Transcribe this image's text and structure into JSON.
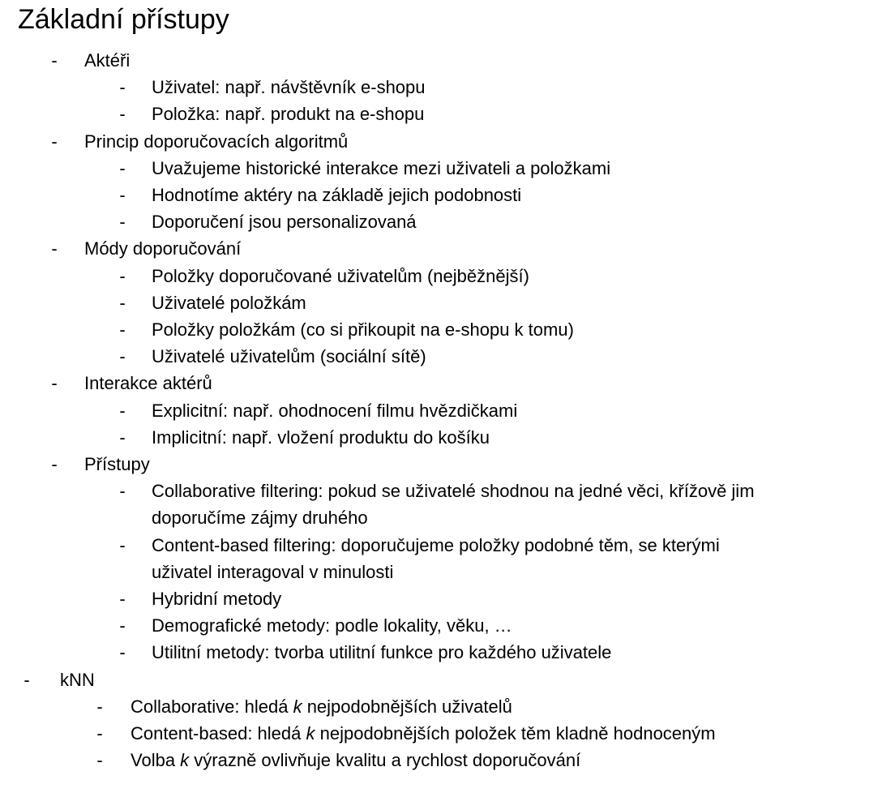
{
  "title": "Základní přístupy",
  "bullet": "-",
  "sections": [
    {
      "label": "Aktéři",
      "items": [
        [
          "Uživatel: např. návštěvník e-shopu"
        ],
        [
          "Položka: např. produkt na e-shopu"
        ]
      ]
    },
    {
      "label": "Princip doporučovacích algoritmů",
      "items": [
        [
          "Uvažujeme historické interakce mezi uživateli a položkami"
        ],
        [
          "Hodnotíme aktéry na základě jejich podobnosti"
        ],
        [
          "Doporučení jsou personalizovaná"
        ]
      ]
    },
    {
      "label": "Módy doporučování",
      "items": [
        [
          "Položky doporučované uživatelům (nejběžnější)"
        ],
        [
          "Uživatelé položkám"
        ],
        [
          "Položky položkám (co si přikoupit na e-shopu k tomu)"
        ],
        [
          "Uživatelé uživatelům (sociální sítě)"
        ]
      ]
    },
    {
      "label": "Interakce aktérů",
      "items": [
        [
          "Explicitní: např. ohodnocení filmu hvězdičkami"
        ],
        [
          "Implicitní: např. vložení produktu do košíku"
        ]
      ]
    },
    {
      "label": "Přístupy",
      "items": [
        [
          "Collaborative filtering: pokud se uživatelé shodnou na jedné věci, křížově jim",
          "doporučíme zájmy druhého"
        ],
        [
          "Content-based filtering: doporučujeme položky podobné těm, se kterými",
          "uživatel interagoval v minulosti"
        ],
        [
          "Hybridní metody"
        ],
        [
          "Demografické metody: podle lokality, věku, …"
        ],
        [
          "Utilitní metody: tvorba utilitní funkce pro každého uživatele"
        ]
      ]
    }
  ],
  "knn": {
    "label": "kNN",
    "items": [
      [
        "Collaborative: hledá ",
        "k",
        " nejpodobnějších uživatelů"
      ],
      [
        "Content-based: hledá ",
        "k",
        " nejpodobnějších položek těm kladně hodnoceným"
      ],
      [
        "Volba ",
        "k",
        " výrazně ovlivňuje kvalitu a rychlost doporučování"
      ]
    ]
  }
}
